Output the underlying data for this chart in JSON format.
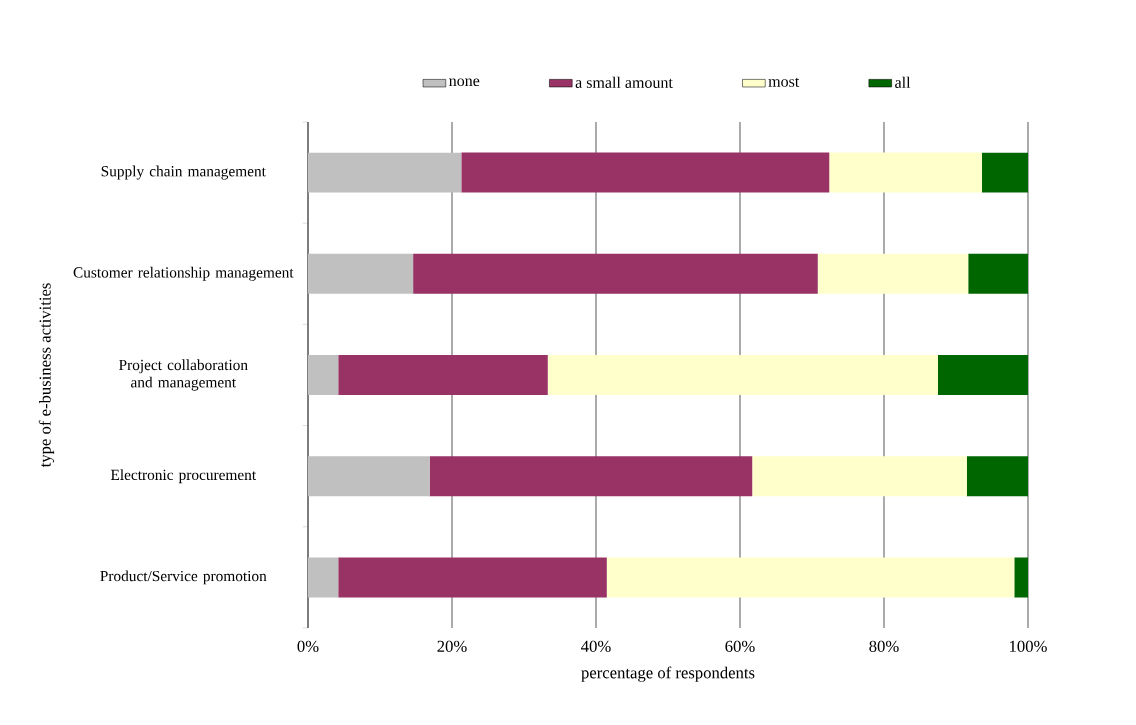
{
  "chart_data": {
    "type": "bar",
    "orientation": "horizontal",
    "stacked": true,
    "categories": [
      "Supply chain management",
      "Customer relationship management",
      "Project collaboration and management",
      "Electronic procurement",
      "Product/Service promotion"
    ],
    "series": [
      {
        "name": "none",
        "color": "#c0c0c0",
        "values": [
          21.3,
          14.6,
          4.2,
          16.9,
          4.2
        ]
      },
      {
        "name": "a small amount",
        "color": "#993366",
        "values": [
          51.1,
          56.2,
          29.1,
          44.8,
          37.3
        ]
      },
      {
        "name": "most",
        "color": "#ffffcc",
        "values": [
          21.2,
          20.9,
          54.2,
          29.8,
          56.6
        ]
      },
      {
        "name": "all",
        "color": "#006600",
        "values": [
          6.4,
          8.3,
          12.5,
          8.5,
          1.9
        ]
      }
    ],
    "xlabel": "percentage of respondents",
    "ylabel": "type of e-business activities",
    "xlim": [
      0,
      100
    ],
    "xticks": [
      {
        "value": 0,
        "label": "0%"
      },
      {
        "value": 20,
        "label": "20%"
      },
      {
        "value": 40,
        "label": "40%"
      },
      {
        "value": 60,
        "label": "60%"
      },
      {
        "value": 80,
        "label": "80%"
      },
      {
        "value": 100,
        "label": "100%"
      }
    ],
    "grid": "x",
    "legend": "top"
  }
}
